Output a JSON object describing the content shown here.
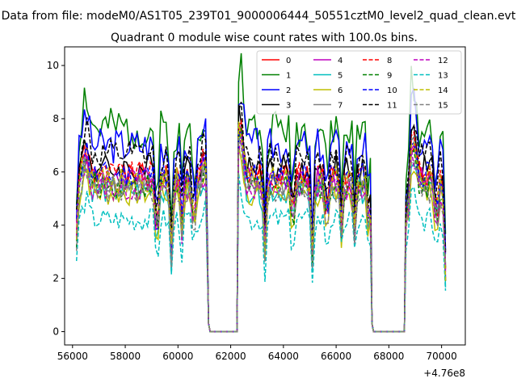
{
  "chart_data": {
    "type": "line",
    "suptitle": "Data from file: modeM0/AS1T05_239T01_9000006444_50551cztM0_level2_quad_clean.evt",
    "title": "Quadrant 0 module wise count rates with 100.0s bins.",
    "xlabel": "",
    "ylabel": "",
    "x_offset_label": "+4.76e8",
    "xlim": [
      55700,
      70900
    ],
    "ylim": [
      -0.5,
      10.7
    ],
    "xticks": [
      56000,
      58000,
      60000,
      62000,
      64000,
      66000,
      68000,
      70000
    ],
    "xtick_labels": [
      "56000",
      "58000",
      "60000",
      "62000",
      "64000",
      "66000",
      "68000",
      "70000"
    ],
    "yticks": [
      0,
      2,
      4,
      6,
      8,
      10
    ],
    "ytick_labels": [
      "0",
      "2",
      "4",
      "6",
      "8",
      "10"
    ],
    "legend_position": "top-right",
    "legend_columns": 4,
    "segments": [
      {
        "start": 56150,
        "end": 61100
      },
      {
        "start": 62300,
        "end": 67300
      },
      {
        "start": 68650,
        "end": 70150
      }
    ],
    "gap_x": [
      61150,
      61250,
      62250
    ],
    "series": [
      {
        "name": "0",
        "color": "#ff0000",
        "dash": false,
        "level": 5.8,
        "amp": 0.5,
        "seed": 1
      },
      {
        "name": "1",
        "color": "#008000",
        "dash": false,
        "level": 7.6,
        "amp": 0.8,
        "seed": 2
      },
      {
        "name": "2",
        "color": "#0000ff",
        "dash": false,
        "level": 7.0,
        "amp": 0.7,
        "seed": 3
      },
      {
        "name": "3",
        "color": "#000000",
        "dash": false,
        "level": 6.1,
        "amp": 0.6,
        "seed": 4
      },
      {
        "name": "4",
        "color": "#bf00bf",
        "dash": false,
        "level": 5.7,
        "amp": 0.5,
        "seed": 5
      },
      {
        "name": "5",
        "color": "#00bfbf",
        "dash": false,
        "level": 5.3,
        "amp": 0.5,
        "seed": 6
      },
      {
        "name": "6",
        "color": "#bfbf00",
        "dash": false,
        "level": 5.2,
        "amp": 0.5,
        "seed": 7
      },
      {
        "name": "7",
        "color": "#808080",
        "dash": false,
        "level": 5.6,
        "amp": 0.5,
        "seed": 8
      },
      {
        "name": "8",
        "color": "#ff0000",
        "dash": true,
        "level": 5.9,
        "amp": 0.5,
        "seed": 9
      },
      {
        "name": "9",
        "color": "#008000",
        "dash": true,
        "level": 5.5,
        "amp": 0.5,
        "seed": 10
      },
      {
        "name": "10",
        "color": "#0000ff",
        "dash": true,
        "level": 5.9,
        "amp": 0.5,
        "seed": 11
      },
      {
        "name": "11",
        "color": "#000000",
        "dash": true,
        "level": 6.6,
        "amp": 0.6,
        "seed": 12
      },
      {
        "name": "12",
        "color": "#bf00bf",
        "dash": true,
        "level": 5.4,
        "amp": 0.5,
        "seed": 13
      },
      {
        "name": "13",
        "color": "#00bfbf",
        "dash": true,
        "level": 4.2,
        "amp": 0.45,
        "seed": 14
      },
      {
        "name": "14",
        "color": "#bfbf00",
        "dash": true,
        "level": 5.7,
        "amp": 0.5,
        "seed": 15
      },
      {
        "name": "15",
        "color": "#808080",
        "dash": true,
        "level": 5.3,
        "amp": 0.5,
        "seed": 16
      }
    ]
  }
}
